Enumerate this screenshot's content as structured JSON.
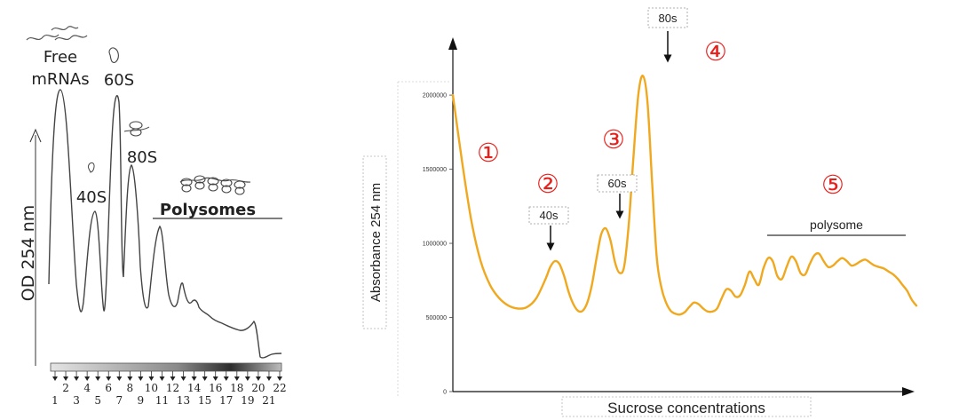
{
  "chart_data": [
    {
      "type": "line",
      "ylabel": "OD 254 nm",
      "peak_labels": [
        {
          "text": "Free",
          "text2": "mRNAs"
        },
        {
          "text": "60S"
        },
        {
          "text": "80S"
        },
        {
          "text": "40S"
        },
        {
          "text": "Polysomes"
        }
      ],
      "fractions_top": [
        "2",
        "4",
        "6",
        "8",
        "10",
        "12",
        "14",
        "16",
        "18",
        "20",
        "22"
      ],
      "fractions_bottom": [
        "1",
        "3",
        "5",
        "7",
        "9",
        "11",
        "13",
        "15",
        "17",
        "19",
        "21"
      ]
    },
    {
      "type": "line",
      "xlabel": "Sucrose concentrations",
      "ylabel": "Absorbance 254 nm",
      "y_ticks": [
        0,
        500000,
        1000000,
        1500000,
        2000000
      ],
      "y_tick_labels": [
        "0",
        "500000",
        "1000000",
        "1500000",
        "2000000"
      ],
      "ylim": [
        0,
        2300000
      ],
      "line_color": "#f0a81e",
      "annotation_color": "#e8201c",
      "series": [
        {
          "x": [
            0,
            2,
            4,
            6,
            8,
            10,
            12,
            14,
            16,
            18,
            20,
            21,
            22,
            23,
            24,
            25,
            26,
            27,
            28,
            29,
            30,
            31,
            32,
            33,
            34,
            35,
            36,
            37,
            38,
            39,
            40,
            41,
            42,
            43,
            44,
            45,
            46,
            47,
            48,
            49,
            50,
            51,
            52,
            53,
            54,
            55,
            56,
            57,
            58,
            59,
            60,
            61,
            62,
            63,
            64,
            65,
            66,
            67,
            68,
            69,
            70,
            71,
            72,
            73,
            74,
            75,
            76,
            77,
            78,
            79,
            80,
            81,
            82,
            83,
            84,
            85,
            86,
            87,
            88,
            89,
            90,
            91,
            92,
            93,
            94,
            95,
            96,
            97,
            98,
            99,
            100
          ],
          "y": [
            2000000,
            1550000,
            1150000,
            880000,
            720000,
            630000,
            580000,
            560000,
            570000,
            630000,
            760000,
            840000,
            880000,
            860000,
            780000,
            670000,
            590000,
            545000,
            545000,
            600000,
            720000,
            900000,
            1060000,
            1100000,
            1020000,
            870000,
            800000,
            850000,
            1150000,
            1600000,
            2000000,
            2130000,
            1950000,
            1400000,
            900000,
            700000,
            600000,
            545000,
            525000,
            520000,
            535000,
            570000,
            600000,
            590000,
            560000,
            540000,
            540000,
            560000,
            630000,
            690000,
            680000,
            640000,
            650000,
            720000,
            810000,
            760000,
            720000,
            830000,
            900000,
            880000,
            780000,
            760000,
            840000,
            910000,
            880000,
            800000,
            790000,
            860000,
            920000,
            930000,
            880000,
            840000,
            850000,
            880000,
            900000,
            880000,
            850000,
            860000,
            880000,
            890000,
            870000,
            850000,
            840000,
            830000,
            810000,
            790000,
            760000,
            720000,
            680000,
            620000,
            580000
          ]
        }
      ],
      "peak_labels": [
        {
          "text": "40s",
          "marker": "②"
        },
        {
          "text": "60s",
          "marker": "③"
        },
        {
          "text": "80s",
          "marker": "④"
        }
      ],
      "region_markers": [
        "①",
        "⑤"
      ],
      "polysome_label": "polysome"
    }
  ]
}
